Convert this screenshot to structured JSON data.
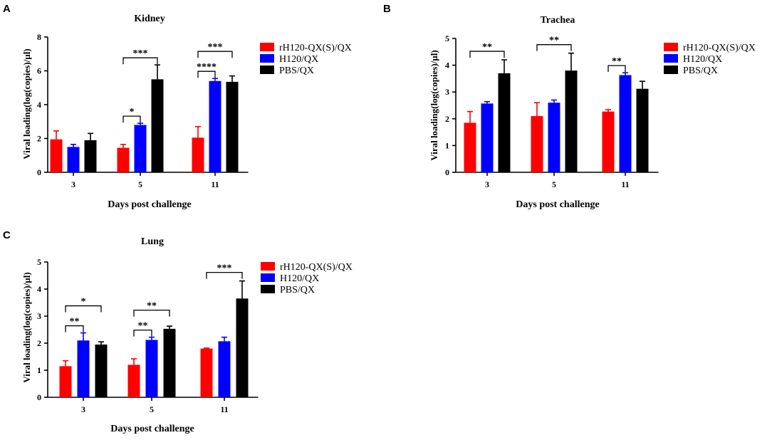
{
  "colors": {
    "rH120": "#ff0000",
    "H120": "#0000ff",
    "PBS": "#000000"
  },
  "chart_data": [
    {
      "panel": "A",
      "type": "bar",
      "title": "Kidney",
      "xlabel": "Days post challenge",
      "ylabel": "Viral loading(log(copies)/µl)",
      "ylim": [
        0,
        8
      ],
      "yticks": [
        0,
        2,
        4,
        6,
        8
      ],
      "categories": [
        "3",
        "5",
        "11"
      ],
      "series": [
        {
          "name": "rH120-QX(S)/QX",
          "values": [
            1.95,
            1.45,
            2.05
          ],
          "errors": [
            0.5,
            0.2,
            0.65
          ]
        },
        {
          "name": "H120/QX",
          "values": [
            1.5,
            2.8,
            5.4
          ],
          "errors": [
            0.15,
            0.1,
            0.15
          ]
        },
        {
          "name": "PBS/QX",
          "values": [
            1.9,
            5.5,
            5.35
          ],
          "errors": [
            0.4,
            0.85,
            0.35
          ]
        }
      ],
      "significance": [
        {
          "group": 1,
          "from": 0,
          "to": 1,
          "label": "*"
        },
        {
          "group": 1,
          "from": 0,
          "to": 2,
          "label": "***"
        },
        {
          "group": 2,
          "from": 0,
          "to": 1,
          "label": "****"
        },
        {
          "group": 2,
          "from": 0,
          "to": 2,
          "label": "***"
        }
      ]
    },
    {
      "panel": "B",
      "type": "bar",
      "title": "Trachea",
      "xlabel": "Days post challenge",
      "ylabel": "Viral loading(log(copies)/µl)",
      "ylim": [
        0,
        5
      ],
      "yticks": [
        0,
        1,
        2,
        3,
        4,
        5
      ],
      "categories": [
        "3",
        "5",
        "11"
      ],
      "series": [
        {
          "name": "rH120-QX(S)/QX",
          "values": [
            1.85,
            2.1,
            2.27
          ],
          "errors": [
            0.42,
            0.5,
            0.07
          ]
        },
        {
          "name": "H120/QX",
          "values": [
            2.57,
            2.6,
            3.63
          ],
          "errors": [
            0.07,
            0.1,
            0.09
          ]
        },
        {
          "name": "PBS/QX",
          "values": [
            3.7,
            3.8,
            3.12
          ],
          "errors": [
            0.5,
            0.65,
            0.28
          ]
        }
      ],
      "significance": [
        {
          "group": 0,
          "from": 0,
          "to": 2,
          "label": "**"
        },
        {
          "group": 1,
          "from": 0,
          "to": 2,
          "label": "**"
        },
        {
          "group": 2,
          "from": 0,
          "to": 1,
          "label": "**"
        }
      ]
    },
    {
      "panel": "C",
      "type": "bar",
      "title": "Lung",
      "xlabel": "Days post challenge",
      "ylabel": "Viral loading(log(copies)/µl)",
      "ylim": [
        0,
        5
      ],
      "yticks": [
        0,
        1,
        2,
        3,
        4,
        5
      ],
      "categories": [
        "3",
        "5",
        "11"
      ],
      "series": [
        {
          "name": "rH120-QX(S)/QX",
          "values": [
            1.15,
            1.2,
            1.8
          ],
          "errors": [
            0.2,
            0.22,
            0.02
          ]
        },
        {
          "name": "H120/QX",
          "values": [
            2.1,
            2.12,
            2.07
          ],
          "errors": [
            0.28,
            0.1,
            0.15
          ]
        },
        {
          "name": "PBS/QX",
          "values": [
            1.95,
            2.53,
            3.65
          ],
          "errors": [
            0.1,
            0.1,
            0.65
          ]
        }
      ],
      "significance": [
        {
          "group": 0,
          "from": 0,
          "to": 1,
          "label": "**"
        },
        {
          "group": 0,
          "from": 0,
          "to": 2,
          "label": "*"
        },
        {
          "group": 1,
          "from": 0,
          "to": 1,
          "label": "**"
        },
        {
          "group": 1,
          "from": 0,
          "to": 2,
          "label": "**"
        },
        {
          "group": 2,
          "from": 0,
          "to": 2,
          "label": "***"
        }
      ]
    }
  ]
}
